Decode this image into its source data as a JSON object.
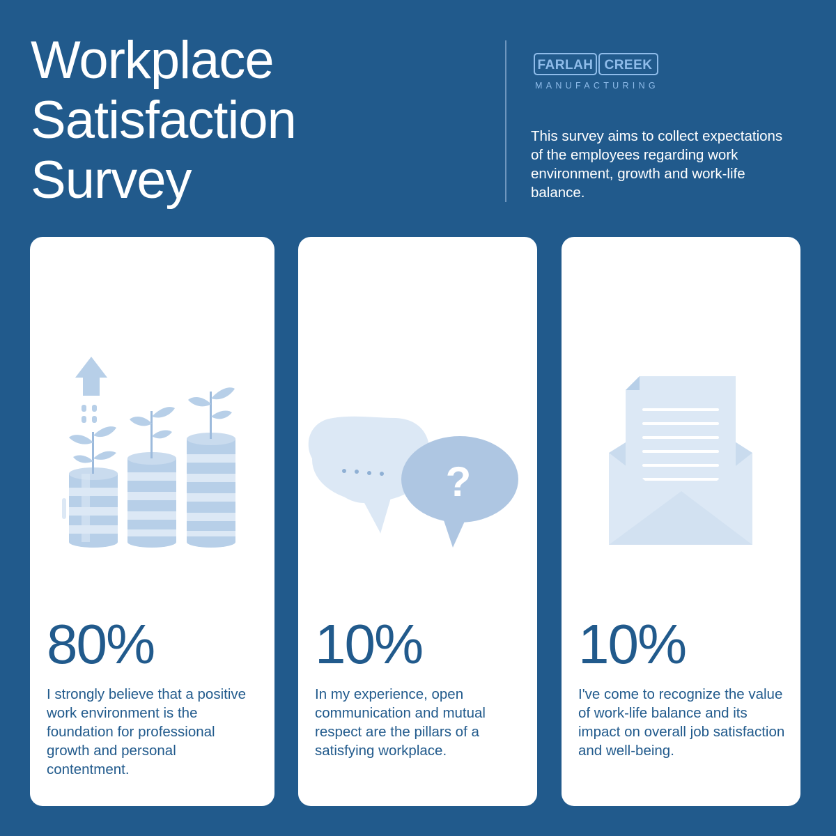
{
  "header": {
    "title_lines": [
      "Workplace",
      "Satisfaction",
      "Survey"
    ],
    "description": "This survey aims to collect expectations of the employees regarding work environment, growth and work-life balance."
  },
  "logo": {
    "word1": "FARLAH",
    "word2": "CREEK",
    "subtitle": "MANUFACTURING"
  },
  "cards": [
    {
      "icon": "growing-coins-icon",
      "percent": "80%",
      "text": "I strongly believe that a positive work environment is the foundation for professional growth and personal contentment."
    },
    {
      "icon": "chat-bubbles-icon",
      "percent": "10%",
      "text": "In my experience, open communication and mutual respect are the pillars of a satisfying workplace."
    },
    {
      "icon": "envelope-letter-icon",
      "percent": "10%",
      "text": "I've come to recognize the value of work-life balance and its impact on overall job satisfaction and well-being."
    }
  ],
  "colors": {
    "background": "#215a8c",
    "card": "#ffffff",
    "accent_text": "#215a8c",
    "logo": "#8fbcea",
    "illustration_light": "#dce8f5",
    "illustration_mid": "#b7cfe8",
    "illustration_dark": "#9cbadc"
  }
}
